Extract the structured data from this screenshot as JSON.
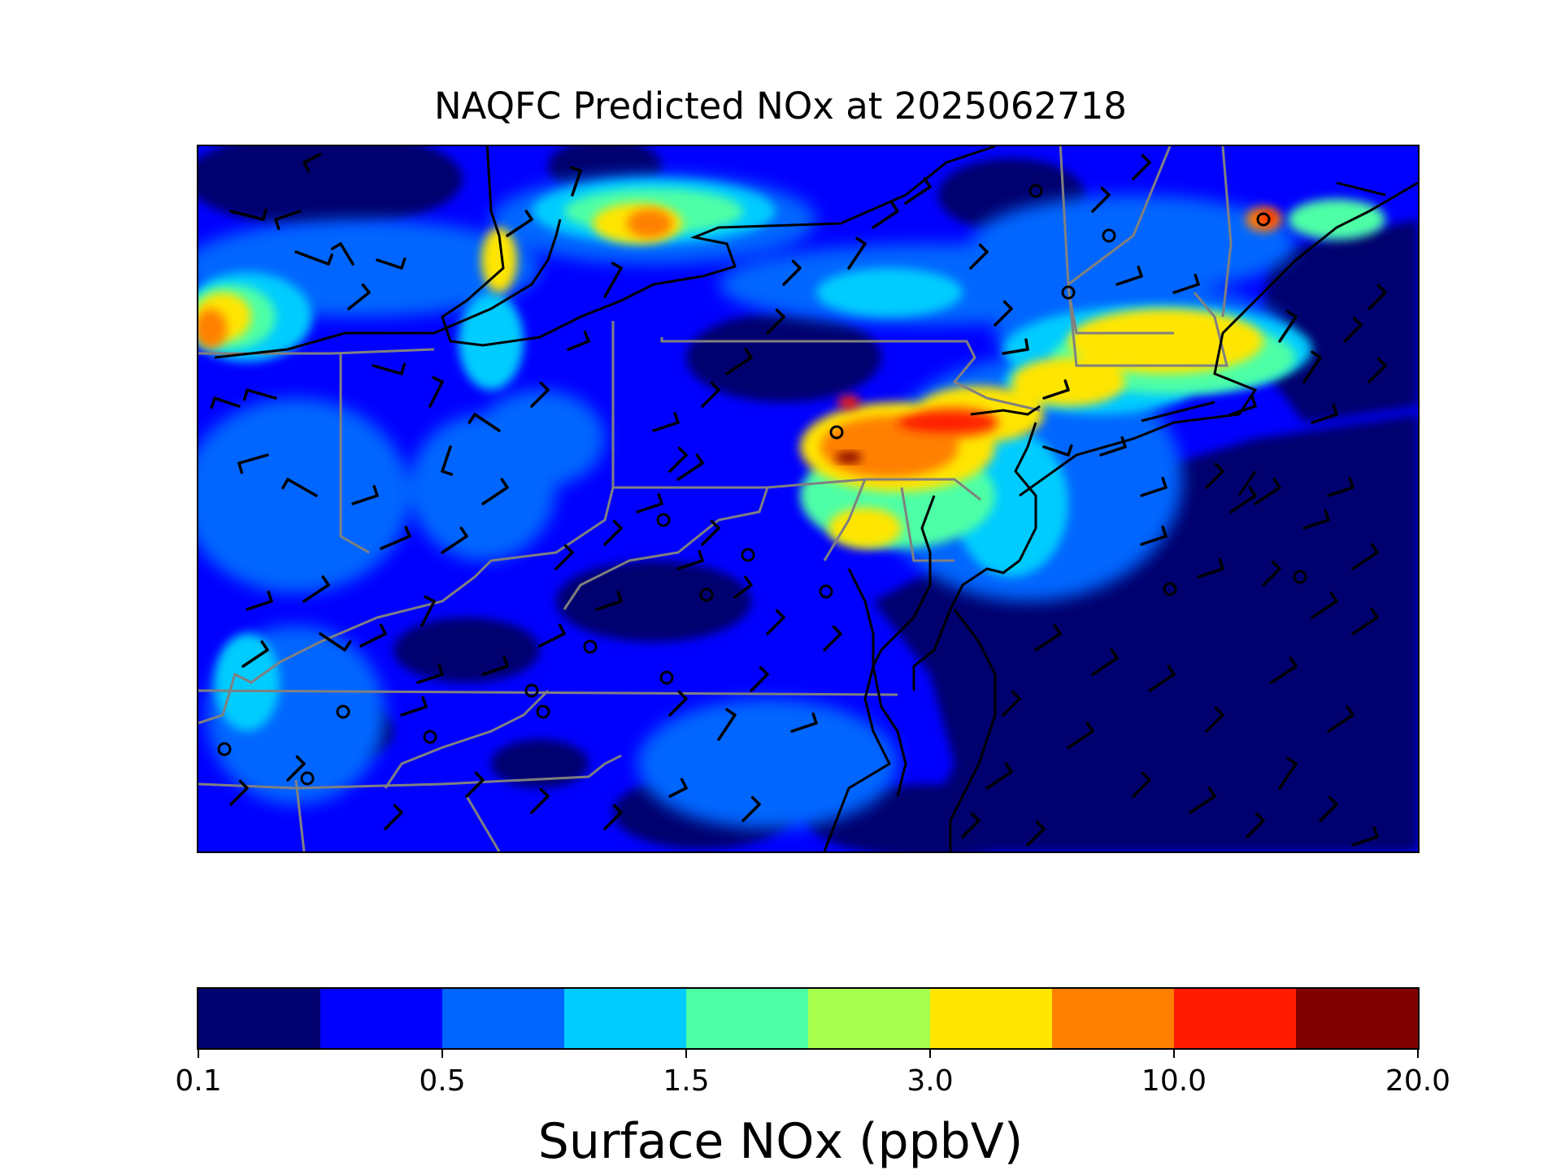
{
  "title": "NAQFC Predicted NOx at 2025062718",
  "colorbar": {
    "label": "Surface NOx (ppbV)",
    "colors": [
      "#00006e",
      "#0000ff",
      "#0066ff",
      "#00ccff",
      "#4dffa6",
      "#a6ff4d",
      "#ffe500",
      "#ff8000",
      "#ff1a00",
      "#800000"
    ],
    "tick_labels": [
      {
        "bin_index": 0,
        "text": "0.1"
      },
      {
        "bin_index": 2,
        "text": "0.5"
      },
      {
        "bin_index": 4,
        "text": "1.5"
      },
      {
        "bin_index": 6,
        "text": "3.0"
      },
      {
        "bin_index": 8,
        "text": "10.0"
      },
      {
        "bin_index": 10,
        "text": "20.0"
      }
    ]
  },
  "map": {
    "region": "US Mid-Atlantic / Northeast",
    "layers": [
      "gridded surface NOx",
      "coastlines",
      "state boundaries",
      "wind barbs",
      "observation sites"
    ],
    "coast_color": "#000000",
    "state_border_color": "#808080",
    "barb_color": "#000000",
    "site_marker_color": "#000000"
  }
}
